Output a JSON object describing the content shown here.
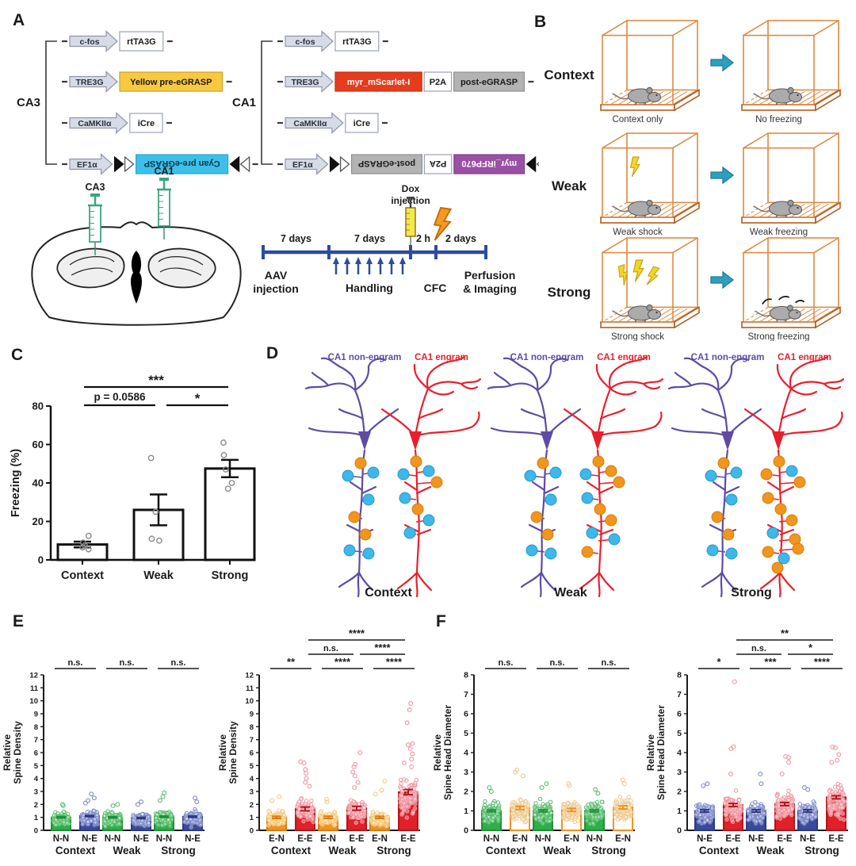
{
  "figure": {
    "panel_labels": {
      "A": "A",
      "B": "B",
      "C": "C",
      "D": "D",
      "E": "E",
      "F": "F"
    }
  },
  "colors": {
    "promoter_fill": "#d6dbe7",
    "promoter_stroke": "#8e97a8",
    "yellow_box": "#f8c93f",
    "cyan_box": "#3cc0ea",
    "red_box": "#e63c1e",
    "gray_box": "#b3b3b3",
    "purple_box": "#9a51a5",
    "timeline_blue": "#2d4b9f",
    "syringe_green": "#3aa57c",
    "dox_yellow": "#f4e84a",
    "bolt_orange": "#f59a1e",
    "bolt_yellow": "#f2d52b",
    "cage_orange": "#dd8a44",
    "arrow_teal": "#2f9fc0",
    "mouse_gray": "#ababab",
    "nonengram_purple": "#5f4ba5",
    "engram_red": "#e8202c",
    "synapse_orange": "#f2951d",
    "synapse_cyan": "#3eb7ea"
  },
  "panelA": {
    "ca3": {
      "label": "CA3",
      "rows": [
        {
          "promoter": "c-fos",
          "boxes": [
            {
              "label": "rtTA3G",
              "type": "white"
            }
          ]
        },
        {
          "promoter": "TRE3G",
          "boxes": [
            {
              "label": "Yellow pre-eGRASP",
              "type": "yellow"
            }
          ]
        },
        {
          "promoter": "CaMKIIα",
          "boxes": [
            {
              "label": "iCre",
              "type": "white"
            }
          ]
        },
        {
          "promoter": "EF1α",
          "flex": true,
          "boxes": [
            {
              "label": "Cyan pre-eGRASP",
              "type": "cyan"
            }
          ]
        }
      ]
    },
    "ca1": {
      "label": "CA1",
      "rows": [
        {
          "promoter": "c-fos",
          "boxes": [
            {
              "label": "rtTA3G",
              "type": "white"
            }
          ]
        },
        {
          "promoter": "TRE3G",
          "boxes": [
            {
              "label": "myr_mScarlet-I",
              "type": "red"
            },
            {
              "label": "P2A",
              "type": "white"
            },
            {
              "label": "post-eGRASP",
              "type": "gray"
            }
          ]
        },
        {
          "promoter": "CaMKIIα",
          "boxes": [
            {
              "label": "iCre",
              "type": "white"
            }
          ]
        },
        {
          "promoter": "EF1α",
          "flex": true,
          "boxes": [
            {
              "label": "post-eGRASP",
              "type": "gray"
            },
            {
              "label": "P2A",
              "type": "white"
            },
            {
              "label": "myr_iRFP670",
              "type": "purple"
            }
          ]
        }
      ]
    },
    "injection": {
      "ca3": "CA3",
      "ca1": "CA1"
    },
    "timeline": {
      "segments": [
        "7 days",
        "7 days",
        "2 h",
        "2 days"
      ],
      "dox": [
        "Dox",
        "injection"
      ],
      "milestones": [
        [
          "AAV",
          "injection"
        ],
        [
          "Handling"
        ],
        [
          "CFC"
        ],
        [
          "Perfusion",
          "& Imaging"
        ]
      ]
    }
  },
  "panelB": {
    "rows": [
      {
        "condition": "Context",
        "left_caption": "Context only",
        "right_caption": "No freezing",
        "bolts": 0,
        "freezing": "none"
      },
      {
        "condition": "Weak",
        "left_caption": "Weak shock",
        "right_caption": "Weak freezing",
        "bolts": 1,
        "freezing": "weak"
      },
      {
        "condition": "Strong",
        "left_caption": "Strong shock",
        "right_caption": "Strong freezing",
        "bolts": 3,
        "freezing": "strong"
      }
    ]
  },
  "panelD": {
    "legend_non": "CA1 non-engram",
    "legend_eng": "CA1 engram",
    "conditions": [
      {
        "label": "Context",
        "non_dots": [
          "o",
          "c",
          "c",
          "c",
          "o",
          "o",
          "c",
          "c"
        ],
        "eng_dots": [
          "o",
          "c",
          "c",
          "o",
          "c",
          "o",
          "c",
          "c"
        ]
      },
      {
        "label": "Weak",
        "non_dots": [
          "o",
          "c",
          "c",
          "c",
          "o",
          "o",
          "c",
          "c"
        ],
        "eng_dots": [
          "o",
          "c",
          "o",
          "o",
          "c",
          "o",
          "o",
          "c",
          "c",
          "o"
        ]
      },
      {
        "label": "Strong",
        "non_dots": [
          "o",
          "c",
          "c",
          "c",
          "o",
          "o",
          "c",
          "c"
        ],
        "eng_dots": [
          "o",
          "o",
          "c",
          "o",
          "o",
          "o",
          "o",
          "c",
          "o",
          "o",
          "c",
          "o",
          "o"
        ]
      }
    ]
  },
  "chart_data": [
    {
      "id": "panelC",
      "type": "bar",
      "ylabel": "Freezing (%)",
      "ylim": [
        0,
        80
      ],
      "yticks": [
        0,
        20,
        40,
        60,
        80
      ],
      "categories": [
        "Context",
        "Weak",
        "Strong"
      ],
      "values": [
        8,
        26,
        47.5
      ],
      "errors": [
        1.5,
        8,
        4.5
      ],
      "points": [
        [
          5.5,
          6.5,
          7.5,
          9,
          12.5
        ],
        [
          10,
          11,
          25,
          53
        ],
        [
          37,
          40,
          47,
          54.5,
          61
        ]
      ],
      "significance": [
        {
          "a": 0,
          "b": 2,
          "label": "***",
          "row": 2
        },
        {
          "a": 0,
          "b": 1,
          "label": "p = 0.0586",
          "row": 1
        },
        {
          "a": 1,
          "b": 2,
          "label": "*",
          "row": 1
        }
      ]
    },
    {
      "id": "E-left",
      "type": "bar-scatter",
      "ylabel": [
        "Relative",
        "Spine Density"
      ],
      "ylim": [
        0,
        12
      ],
      "groups": [
        "Context",
        "Weak",
        "Strong"
      ],
      "series": [
        {
          "label": "N-N",
          "fill": "#2fae49",
          "stroke": "#1f8f38",
          "dot": "#57bd6b",
          "n": 115,
          "means": [
            1.0,
            1.0,
            1.05
          ],
          "errors": [
            0.05,
            0.05,
            0.05
          ],
          "outliers": [
            [
              1.9,
              2.0
            ],
            [
              1.9,
              2.0
            ],
            [
              2.3,
              2.6,
              2.9
            ]
          ]
        },
        {
          "label": "N-E",
          "fill": "#3a4b9f",
          "stroke": "#2c3a85",
          "dot": "#7d8ac8",
          "n": 115,
          "means": [
            1.1,
            0.95,
            1.05
          ],
          "errors": [
            0.05,
            0.05,
            0.05
          ],
          "outliers": [
            [
              2.1,
              2.3,
              2.5,
              2.8
            ],
            [
              2.0,
              2.2
            ],
            [
              2.2,
              2.5
            ]
          ]
        }
      ],
      "sig_within": [
        "n.s.",
        "n.s.",
        "n.s."
      ],
      "sig_between": []
    },
    {
      "id": "E-right",
      "type": "bar-scatter",
      "ylabel": [
        "Relative",
        "Spine Density"
      ],
      "ylim": [
        0,
        12
      ],
      "groups": [
        "Context",
        "Weak",
        "Strong"
      ],
      "series": [
        {
          "label": "E-N",
          "fill": "#f29222",
          "stroke": "#d97b10",
          "dot": "#f6c979",
          "n": 115,
          "means": [
            1.0,
            1.0,
            1.0
          ],
          "errors": [
            0.08,
            0.08,
            0.08
          ],
          "outliers": [
            [
              2.3,
              2.6
            ],
            [
              2.2,
              2.4
            ],
            [
              2.8,
              3.1,
              3.8
            ]
          ]
        },
        {
          "label": "E-E",
          "fill": "#e02127",
          "stroke": "#b5151c",
          "dot": "#f0949f",
          "n": 95,
          "means": [
            1.65,
            1.7,
            2.95
          ],
          "errors": [
            0.15,
            0.15,
            0.2
          ],
          "outliers": [
            [
              3.4,
              3.7,
              4.0,
              4.4,
              4.7,
              5.2,
              5.3
            ],
            [
              3.3,
              3.7,
              4.2,
              4.5,
              4.9,
              5.1,
              6.0
            ],
            [
              4.9,
              5.2,
              5.5,
              5.9,
              6.3,
              6.6,
              6.7,
              8.3,
              9.3,
              9.8
            ]
          ]
        }
      ],
      "sig_within": [
        "**",
        "****",
        "****"
      ],
      "sig_between": [
        {
          "a": 0,
          "b": 1,
          "label": "n.s.",
          "row": 1
        },
        {
          "a": 1,
          "b": 2,
          "label": "****",
          "row": 1
        },
        {
          "a": 0,
          "b": 2,
          "label": "****",
          "row": 2
        }
      ]
    },
    {
      "id": "F-left",
      "type": "bar-scatter",
      "ylabel": [
        "Relative",
        "Spine Head Diameter"
      ],
      "ylim": [
        0,
        8
      ],
      "groups": [
        "Context",
        "Weak",
        "Strong"
      ],
      "series": [
        {
          "label": "N-N",
          "fill": "#2fae49",
          "stroke": "#1f8f38",
          "dot": "#57bd6b",
          "n": 105,
          "means": [
            1.0,
            1.0,
            1.0
          ],
          "errors": [
            0.05,
            0.05,
            0.05
          ],
          "outliers": [
            [
              2.0,
              2.2
            ],
            [
              2.2,
              2.4
            ],
            [
              1.9,
              2.1
            ]
          ]
        },
        {
          "label": "E-N",
          "fill": "#ffffff",
          "stroke": "#f29222",
          "dot": "#ecc98f",
          "n": 95,
          "means": [
            1.15,
            1.05,
            1.18
          ],
          "errors": [
            0.08,
            0.08,
            0.08
          ],
          "outliers": [
            [
              2.8,
              3.0,
              3.1
            ],
            [
              2.3,
              2.4
            ],
            [
              2.4,
              2.6
            ]
          ]
        }
      ],
      "sig_within": [
        "n.s.",
        "n.s.",
        "n.s."
      ],
      "sig_between": []
    },
    {
      "id": "F-right",
      "type": "bar-scatter",
      "ylabel": [
        "Relative",
        "Spine Head Diameter"
      ],
      "ylim": [
        0,
        8
      ],
      "groups": [
        "Context",
        "Weak",
        "Strong"
      ],
      "series": [
        {
          "label": "N-E",
          "fill": "#3a4b9f",
          "stroke": "#2c3a85",
          "dot": "#7d8ac8",
          "n": 105,
          "means": [
            1.0,
            1.0,
            1.0
          ],
          "errors": [
            0.06,
            0.06,
            0.06
          ],
          "outliers": [
            [
              2.3,
              2.4
            ],
            [
              2.4,
              2.9
            ],
            [
              2.1,
              2.2
            ]
          ]
        },
        {
          "label": "E-E",
          "fill": "#e02127",
          "stroke": "#b5151c",
          "dot": "#f0949f",
          "n": 105,
          "means": [
            1.3,
            1.35,
            1.7
          ],
          "errors": [
            0.08,
            0.08,
            0.08
          ],
          "outliers": [
            [
              2.9,
              4.2,
              4.3,
              7.65
            ],
            [
              2.9,
              3.5,
              3.75,
              3.8
            ],
            [
              3.5,
              3.6,
              3.9,
              4.25,
              4.3
            ]
          ]
        }
      ],
      "sig_within": [
        "*",
        "***",
        "****"
      ],
      "sig_between": [
        {
          "a": 0,
          "b": 1,
          "label": "n.s.",
          "row": 1
        },
        {
          "a": 1,
          "b": 2,
          "label": "*",
          "row": 1
        },
        {
          "a": 0,
          "b": 2,
          "label": "**",
          "row": 2
        }
      ]
    }
  ]
}
